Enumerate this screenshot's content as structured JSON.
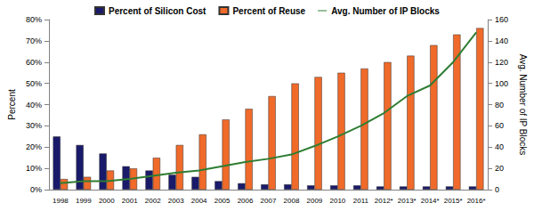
{
  "chart_data": {
    "type": "bar",
    "categories": [
      "1998",
      "1999",
      "2000",
      "2001",
      "2002",
      "2003",
      "2004",
      "2005",
      "2006",
      "2007",
      "2008",
      "2009",
      "2010",
      "2011",
      "2012*",
      "2013*",
      "2014*",
      "2015*",
      "2016*"
    ],
    "series": [
      {
        "name": "Percent of Silicon Cost",
        "type": "bar",
        "color": "#1a1a6b",
        "values": [
          25,
          21,
          17,
          11,
          9,
          7,
          6,
          4,
          3,
          2.5,
          2.5,
          2,
          2,
          2,
          1.5,
          1.5,
          1.5,
          1.5,
          1.5
        ]
      },
      {
        "name": "Percent of Reuse",
        "type": "bar",
        "color": "#f06a2a",
        "values": [
          5,
          6,
          9,
          10,
          15,
          21,
          26,
          33,
          38,
          44,
          50,
          53,
          55,
          57,
          60,
          63,
          68,
          73,
          76
        ]
      },
      {
        "name": "Avg. Number of IP Blocks",
        "type": "line",
        "axis": "y2",
        "color": "#2e7d32",
        "marker": "none",
        "values": [
          6,
          8,
          8,
          10,
          13,
          16,
          18,
          22,
          26,
          29,
          33,
          41,
          50,
          60,
          72,
          88,
          98,
          120,
          148
        ]
      }
    ],
    "y_label": "Percent",
    "y2_label": "Avg. Number of IP Blocks",
    "ylim": [
      0,
      80
    ],
    "yticks": [
      {
        "value": 0,
        "label": "0%"
      },
      {
        "value": 10,
        "label": "10%"
      },
      {
        "value": 20,
        "label": "20%"
      },
      {
        "value": 30,
        "label": "30%"
      },
      {
        "value": 40,
        "label": "40%"
      },
      {
        "value": 50,
        "label": "50%"
      },
      {
        "value": 60,
        "label": "60%"
      },
      {
        "value": 70,
        "label": "70%"
      },
      {
        "value": 80,
        "label": "80%"
      }
    ],
    "y2lim": [
      0,
      160
    ],
    "y2ticks": [
      0,
      20,
      40,
      60,
      80,
      100,
      120,
      140,
      160
    ],
    "legend": "top",
    "grid": false
  }
}
